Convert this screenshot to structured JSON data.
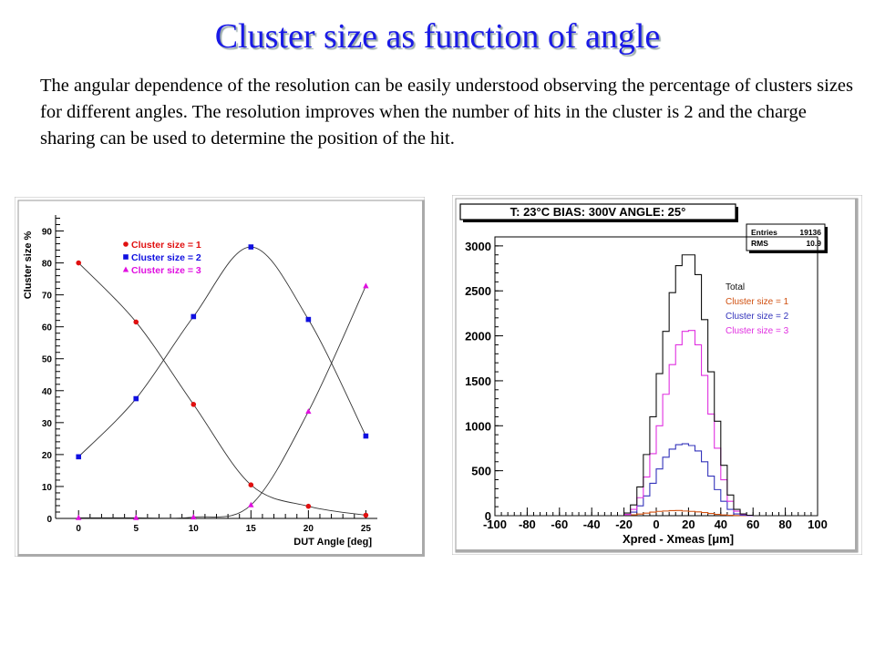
{
  "slide": {
    "title": "Cluster size as function of angle",
    "description": "The angular dependence of the resolution can be easily understood observing the percentage of clusters sizes for different angles. The resolution improves when the number of hits in the cluster is 2 and the charge sharing can be used to determine the position of the hit."
  },
  "chart_data": [
    {
      "type": "line",
      "xlabel": "DUT Angle [deg]",
      "ylabel": "Cluster size %",
      "xlim": [
        -2,
        26
      ],
      "ylim": [
        0,
        95
      ],
      "x_ticks": [
        "0",
        "5",
        "10",
        "15",
        "20",
        "25"
      ],
      "y_ticks": [
        "0",
        "10",
        "20",
        "30",
        "40",
        "50",
        "60",
        "70",
        "80",
        "90"
      ],
      "legend_position": "top-left",
      "grid": false,
      "x": [
        0,
        5,
        10,
        15,
        20,
        25
      ],
      "series": [
        {
          "name": "Cluster size = 1",
          "color": "#e01010",
          "marker": "circle",
          "values": [
            80,
            61.5,
            35.7,
            10.5,
            3.8,
            1.0
          ]
        },
        {
          "name": "Cluster size = 2",
          "color": "#1010e0",
          "marker": "square",
          "values": [
            19.3,
            37.5,
            63.2,
            85.0,
            62.3,
            25.8
          ]
        },
        {
          "name": "Cluster size = 3",
          "color": "#e010e0",
          "marker": "triangle",
          "values": [
            0.2,
            0.2,
            0.4,
            4.2,
            33.5,
            72.8
          ]
        }
      ]
    },
    {
      "type": "line",
      "title": "T: 23°C BIAS: 300V ANGLE: 25°",
      "xlabel": "Xpred - Xmeas [μm]",
      "ylabel": "",
      "xlim": [
        -100,
        100
      ],
      "ylim": [
        0,
        3100
      ],
      "x_ticks": [
        "-100",
        "-80",
        "-60",
        "-40",
        "-20",
        "0",
        "20",
        "40",
        "60",
        "80",
        "100"
      ],
      "y_ticks": [
        "0",
        "500",
        "1000",
        "1500",
        "2000",
        "2500",
        "3000"
      ],
      "stats": {
        "entries_label": "Entries",
        "entries": "19136",
        "rms_label": "RMS",
        "rms": "10.9"
      },
      "legend_position": "right",
      "grid": false,
      "bin_width": 4,
      "bin_edges_start": -100,
      "series": [
        {
          "name": "Total",
          "color": "#111111",
          "values": [
            0,
            0,
            0,
            0,
            0,
            0,
            0,
            0,
            0,
            0,
            0,
            0,
            0,
            0,
            0,
            0,
            0,
            0,
            0,
            0,
            30,
            120,
            320,
            680,
            1100,
            1580,
            2050,
            2480,
            2780,
            2900,
            2900,
            2680,
            2180,
            1600,
            1050,
            560,
            230,
            70,
            20,
            5,
            0,
            0,
            0,
            0,
            0,
            0,
            0,
            0,
            0,
            0
          ]
        },
        {
          "name": "Cluster size = 1",
          "color": "#d05010",
          "values": [
            0,
            0,
            0,
            0,
            0,
            0,
            0,
            0,
            0,
            0,
            0,
            0,
            0,
            0,
            0,
            0,
            0,
            0,
            0,
            0,
            5,
            10,
            18,
            28,
            40,
            48,
            52,
            56,
            58,
            52,
            48,
            42,
            35,
            25,
            15,
            8,
            4,
            2,
            0,
            0,
            0,
            0,
            0,
            0,
            0,
            0,
            0,
            0,
            0,
            0
          ]
        },
        {
          "name": "Cluster size = 2",
          "color": "#3333bb",
          "values": [
            0,
            0,
            0,
            0,
            0,
            0,
            0,
            0,
            0,
            0,
            0,
            0,
            0,
            0,
            0,
            0,
            0,
            0,
            0,
            0,
            10,
            40,
            110,
            220,
            360,
            520,
            650,
            740,
            790,
            800,
            780,
            720,
            600,
            440,
            290,
            160,
            70,
            20,
            5,
            0,
            0,
            0,
            0,
            0,
            0,
            0,
            0,
            0,
            0,
            0
          ]
        },
        {
          "name": "Cluster size = 3",
          "color": "#e030e0",
          "values": [
            0,
            0,
            0,
            0,
            0,
            0,
            0,
            0,
            0,
            0,
            0,
            0,
            0,
            0,
            0,
            0,
            0,
            0,
            0,
            0,
            15,
            70,
            200,
            430,
            690,
            1000,
            1350,
            1680,
            1900,
            2050,
            2060,
            1900,
            1560,
            1130,
            750,
            400,
            160,
            50,
            15,
            3,
            0,
            0,
            0,
            0,
            0,
            0,
            0,
            0,
            0,
            0
          ]
        }
      ]
    }
  ]
}
